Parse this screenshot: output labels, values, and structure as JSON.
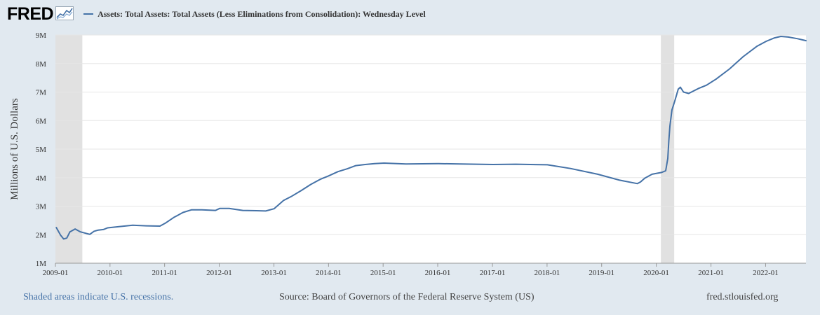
{
  "logo": {
    "text": "FRED"
  },
  "legend": {
    "label": "Assets: Total Assets: Total Assets (Less Eliminations from Consolidation): Wednesday Level"
  },
  "footer": {
    "recession_note": "Shaded areas indicate U.S. recessions.",
    "source": "Source: Board of Governors of the Federal Reserve System (US)",
    "site": "fred.stlouisfed.org"
  },
  "colors": {
    "line": "#4572a7",
    "recession": "#e1e1e1",
    "background": "#e1e9f0",
    "plot": "#ffffff",
    "grid": "#e6e6e6"
  },
  "chart_data": {
    "type": "line",
    "title": "",
    "xlabel": "",
    "ylabel": "Millions of U.S. Dollars",
    "xlim": [
      "2009-01-01",
      "2022-09-28"
    ],
    "ylim": [
      1,
      9
    ],
    "yticks": [
      1,
      2,
      3,
      4,
      5,
      6,
      7,
      8,
      9
    ],
    "ytick_labels": [
      "1M",
      "2M",
      "3M",
      "4M",
      "5M",
      "6M",
      "7M",
      "8M",
      "9M"
    ],
    "xticks": [
      "2009-01-01",
      "2010-01-01",
      "2011-01-01",
      "2012-01-01",
      "2013-01-01",
      "2014-01-01",
      "2015-01-01",
      "2016-01-01",
      "2017-01-01",
      "2018-01-01",
      "2019-01-01",
      "2020-01-01",
      "2021-01-01",
      "2022-01-01"
    ],
    "xtick_labels": [
      "2009-01",
      "2010-01",
      "2011-01",
      "2012-01",
      "2013-01",
      "2014-01",
      "2015-01",
      "2016-01",
      "2017-01",
      "2018-01",
      "2019-01",
      "2020-01",
      "2021-01",
      "2022-01"
    ],
    "grid": true,
    "legend_position": "top",
    "recessions": [
      {
        "start": "2009-01-01",
        "end": "2009-06-30"
      },
      {
        "start": "2020-02-01",
        "end": "2020-04-30"
      }
    ],
    "series": [
      {
        "name": "Assets: Total Assets: Total Assets (Less Eliminations from Consolidation): Wednesday Level",
        "points": [
          [
            "2009-01-07",
            2.25
          ],
          [
            "2009-02-04",
            1.99
          ],
          [
            "2009-02-25",
            1.85
          ],
          [
            "2009-03-18",
            1.88
          ],
          [
            "2009-04-08",
            2.1
          ],
          [
            "2009-05-13",
            2.2
          ],
          [
            "2009-06-17",
            2.1
          ],
          [
            "2009-07-15",
            2.06
          ],
          [
            "2009-08-19",
            2.01
          ],
          [
            "2009-09-16",
            2.12
          ],
          [
            "2009-10-14",
            2.16
          ],
          [
            "2009-11-18",
            2.18
          ],
          [
            "2009-12-16",
            2.24
          ],
          [
            "2010-03-03",
            2.28
          ],
          [
            "2010-06-02",
            2.33
          ],
          [
            "2010-09-01",
            2.31
          ],
          [
            "2010-12-01",
            2.3
          ],
          [
            "2011-01-05",
            2.4
          ],
          [
            "2011-03-02",
            2.6
          ],
          [
            "2011-05-04",
            2.78
          ],
          [
            "2011-06-29",
            2.87
          ],
          [
            "2011-09-07",
            2.87
          ],
          [
            "2011-12-07",
            2.85
          ],
          [
            "2012-01-04",
            2.92
          ],
          [
            "2012-03-07",
            2.92
          ],
          [
            "2012-06-06",
            2.85
          ],
          [
            "2012-09-05",
            2.84
          ],
          [
            "2012-11-07",
            2.83
          ],
          [
            "2013-01-02",
            2.91
          ],
          [
            "2013-03-06",
            3.2
          ],
          [
            "2013-05-01",
            3.35
          ],
          [
            "2013-07-03",
            3.55
          ],
          [
            "2013-09-04",
            3.76
          ],
          [
            "2013-11-06",
            3.94
          ],
          [
            "2014-01-01",
            4.06
          ],
          [
            "2014-03-05",
            4.21
          ],
          [
            "2014-05-07",
            4.31
          ],
          [
            "2014-07-02",
            4.42
          ],
          [
            "2014-09-03",
            4.46
          ],
          [
            "2014-11-05",
            4.49
          ],
          [
            "2015-01-07",
            4.51
          ],
          [
            "2015-06-03",
            4.48
          ],
          [
            "2016-01-06",
            4.49
          ],
          [
            "2016-06-01",
            4.48
          ],
          [
            "2017-01-04",
            4.46
          ],
          [
            "2017-06-07",
            4.47
          ],
          [
            "2018-01-03",
            4.45
          ],
          [
            "2018-06-06",
            4.32
          ],
          [
            "2018-12-05",
            4.12
          ],
          [
            "2019-05-01",
            3.91
          ],
          [
            "2019-08-28",
            3.79
          ],
          [
            "2019-09-18",
            3.85
          ],
          [
            "2019-10-16",
            3.98
          ],
          [
            "2019-12-04",
            4.12
          ],
          [
            "2020-02-05",
            4.18
          ],
          [
            "2020-03-04",
            4.24
          ],
          [
            "2020-03-18",
            4.67
          ],
          [
            "2020-03-25",
            5.3
          ],
          [
            "2020-04-01",
            5.8
          ],
          [
            "2020-04-15",
            6.37
          ],
          [
            "2020-05-06",
            6.72
          ],
          [
            "2020-05-27",
            7.1
          ],
          [
            "2020-06-10",
            7.17
          ],
          [
            "2020-07-01",
            7.0
          ],
          [
            "2020-08-05",
            6.95
          ],
          [
            "2020-10-07",
            7.12
          ],
          [
            "2020-12-02",
            7.24
          ],
          [
            "2021-02-03",
            7.45
          ],
          [
            "2021-05-05",
            7.81
          ],
          [
            "2021-08-04",
            8.24
          ],
          [
            "2021-11-03",
            8.6
          ],
          [
            "2022-01-05",
            8.78
          ],
          [
            "2022-03-02",
            8.9
          ],
          [
            "2022-04-13",
            8.95
          ],
          [
            "2022-06-01",
            8.93
          ],
          [
            "2022-08-03",
            8.87
          ],
          [
            "2022-09-28",
            8.8
          ]
        ]
      }
    ]
  }
}
